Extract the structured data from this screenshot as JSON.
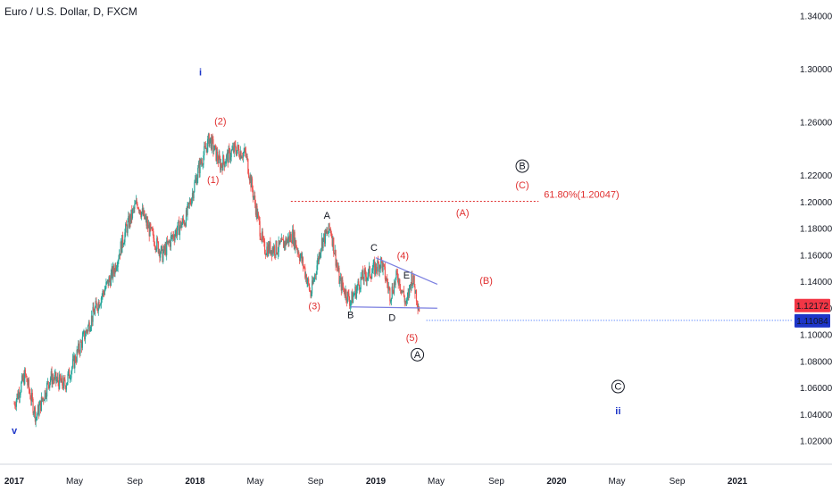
{
  "header": {
    "title": "Euro / U.S. Dollar, D, FXCM"
  },
  "chart_data": {
    "type": "candlestick",
    "symbol": "EURUSD",
    "timeframe": "D",
    "source": "FXCM",
    "y_ticks": [
      "1.34000",
      "1.30000",
      "1.26000",
      "1.22000",
      "1.20000",
      "1.18000",
      "1.16000",
      "1.14000",
      "1.12000",
      "1.10000",
      "1.08000",
      "1.06000",
      "1.04000",
      "1.02000"
    ],
    "x_ticks": [
      "2017",
      "May",
      "Sep",
      "2018",
      "May",
      "Sep",
      "2019",
      "May",
      "Sep",
      "2020",
      "May",
      "Sep",
      "2021"
    ],
    "ylim": [
      1.005,
      1.345
    ],
    "price_path": [
      [
        2017.0,
        1.048
      ],
      [
        2017.06,
        1.07
      ],
      [
        2017.12,
        1.038
      ],
      [
        2017.2,
        1.068
      ],
      [
        2017.28,
        1.062
      ],
      [
        2017.36,
        1.09
      ],
      [
        2017.45,
        1.12
      ],
      [
        2017.55,
        1.148
      ],
      [
        2017.62,
        1.18
      ],
      [
        2017.68,
        1.2
      ],
      [
        2017.75,
        1.178
      ],
      [
        2017.82,
        1.16
      ],
      [
        2017.88,
        1.175
      ],
      [
        2017.95,
        1.188
      ],
      [
        2018.02,
        1.225
      ],
      [
        2018.08,
        1.248
      ],
      [
        2018.14,
        1.228
      ],
      [
        2018.22,
        1.24
      ],
      [
        2018.28,
        1.236
      ],
      [
        2018.33,
        1.2
      ],
      [
        2018.38,
        1.165
      ],
      [
        2018.46,
        1.165
      ],
      [
        2018.54,
        1.175
      ],
      [
        2018.6,
        1.152
      ],
      [
        2018.64,
        1.13
      ],
      [
        2018.7,
        1.17
      ],
      [
        2018.75,
        1.18
      ],
      [
        2018.8,
        1.14
      ],
      [
        2018.86,
        1.125
      ],
      [
        2018.92,
        1.142
      ],
      [
        2018.98,
        1.148
      ],
      [
        2019.03,
        1.155
      ],
      [
        2019.08,
        1.13
      ],
      [
        2019.12,
        1.145
      ],
      [
        2019.17,
        1.122
      ],
      [
        2019.2,
        1.145
      ],
      [
        2019.24,
        1.12
      ]
    ],
    "last_price": {
      "label": "1.12172",
      "value": 1.12172,
      "color": "#f23645"
    },
    "horizontal_line": {
      "label": "1.11084",
      "value": 1.11084,
      "from_x": 2019.28,
      "color": "#2962ff"
    },
    "fib_level": {
      "label": "61.80%(1.20047)",
      "value": 1.20047,
      "from_x": 2018.53,
      "to_x": 2019.9,
      "color": "#e03030"
    },
    "triangle_lines": [
      {
        "from": [
          2019.0,
          1.158
        ],
        "to": [
          2019.34,
          1.138
        ]
      },
      {
        "from": [
          2018.86,
          1.121
        ],
        "to": [
          2019.34,
          1.12
        ]
      }
    ],
    "wave_labels": [
      {
        "text": "i",
        "x": 2018.03,
        "y": 1.298,
        "color": "#1d35c8",
        "style": "bold"
      },
      {
        "text": "v",
        "x": 2017.0,
        "y": 1.028,
        "color": "#1d35c8",
        "style": "bold"
      },
      {
        "text": "(1)",
        "x": 2018.1,
        "y": 1.217,
        "color": "#e03030"
      },
      {
        "text": "(2)",
        "x": 2018.14,
        "y": 1.261,
        "color": "#e03030"
      },
      {
        "text": "(3)",
        "x": 2018.66,
        "y": 1.122,
        "color": "#e03030"
      },
      {
        "text": "(4)",
        "x": 2019.15,
        "y": 1.16,
        "color": "#e03030"
      },
      {
        "text": "(5)",
        "x": 2019.2,
        "y": 1.098,
        "color": "#e03030"
      },
      {
        "text": "A",
        "x": 2018.73,
        "y": 1.19,
        "color": "#131722"
      },
      {
        "text": "B",
        "x": 2018.86,
        "y": 1.115,
        "color": "#131722"
      },
      {
        "text": "C",
        "x": 2018.99,
        "y": 1.166,
        "color": "#131722"
      },
      {
        "text": "D",
        "x": 2019.09,
        "y": 1.113,
        "color": "#131722"
      },
      {
        "text": "E",
        "x": 2019.17,
        "y": 1.145,
        "color": "#131722"
      },
      {
        "text": "(A)",
        "x": 2019.48,
        "y": 1.192,
        "color": "#e03030"
      },
      {
        "text": "(B)",
        "x": 2019.61,
        "y": 1.141,
        "color": "#e03030"
      },
      {
        "text": "(C)",
        "x": 2019.81,
        "y": 1.213,
        "color": "#e03030"
      },
      {
        "text": "A",
        "x": 2019.23,
        "y": 1.085,
        "color": "#131722",
        "circled": true
      },
      {
        "text": "B",
        "x": 2019.81,
        "y": 1.227,
        "color": "#131722",
        "circled": true
      },
      {
        "text": "C",
        "x": 2020.34,
        "y": 1.061,
        "color": "#131722",
        "circled": true
      },
      {
        "text": "ii",
        "x": 2020.34,
        "y": 1.043,
        "color": "#1d35c8",
        "style": "bold"
      }
    ],
    "colors": {
      "up": "#26a69a",
      "down": "#ef5350",
      "axis_bg": "#ffffff",
      "text": "#131722"
    }
  }
}
